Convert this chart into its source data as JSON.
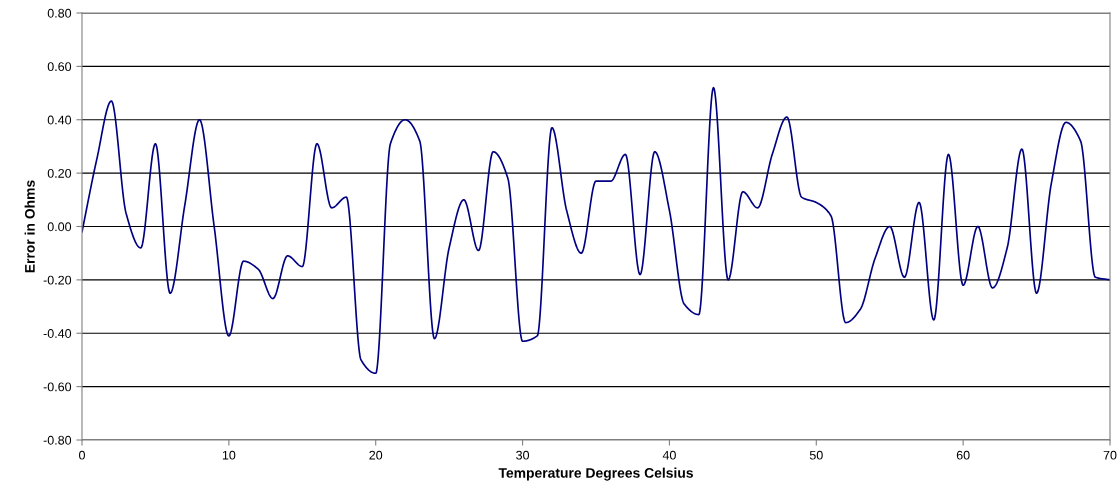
{
  "chart_data": {
    "type": "line",
    "xlabel": "Temperature Degrees Celsius",
    "ylabel": "Error in Ohms",
    "x": [
      0,
      1,
      2,
      3,
      4,
      5,
      6,
      7,
      8,
      9,
      10,
      11,
      12,
      13,
      14,
      15,
      16,
      17,
      18,
      19,
      20,
      21,
      22,
      23,
      24,
      25,
      26,
      27,
      28,
      29,
      30,
      31,
      32,
      33,
      34,
      35,
      36,
      37,
      38,
      39,
      40,
      41,
      42,
      43,
      44,
      45,
      46,
      47,
      48,
      49,
      50,
      51,
      52,
      53,
      54,
      55,
      56,
      57,
      58,
      59,
      60,
      61,
      62,
      63,
      64,
      65,
      66,
      67,
      68,
      69,
      70
    ],
    "series": [
      {
        "color": "#000080",
        "values": [
          -0.02,
          0.25,
          0.47,
          0.05,
          -0.08,
          0.31,
          -0.25,
          0.08,
          0.4,
          0.0,
          -0.41,
          -0.13,
          -0.16,
          -0.27,
          -0.11,
          -0.15,
          0.31,
          0.07,
          0.11,
          -0.5,
          -0.55,
          0.31,
          0.4,
          0.32,
          -0.42,
          -0.08,
          0.1,
          -0.09,
          0.28,
          0.18,
          -0.43,
          -0.41,
          0.37,
          0.06,
          -0.1,
          0.17,
          0.17,
          0.27,
          -0.18,
          0.28,
          0.06,
          -0.29,
          -0.33,
          0.52,
          -0.2,
          0.13,
          0.07,
          0.27,
          0.41,
          0.11,
          0.09,
          0.04,
          -0.36,
          -0.31,
          -0.12,
          0.0,
          -0.19,
          0.09,
          -0.35,
          0.27,
          -0.22,
          0.0,
          -0.23,
          -0.08,
          0.29,
          -0.25,
          0.16,
          0.39,
          0.32,
          -0.19,
          -0.2
        ]
      }
    ],
    "xlim": [
      0,
      70
    ],
    "xticks": [
      0,
      10,
      20,
      30,
      40,
      50,
      60,
      70
    ],
    "ylim": [
      -0.8,
      0.8
    ],
    "yticks": [
      {
        "value": -0.8,
        "label": "-0.80"
      },
      {
        "value": -0.6,
        "label": "-0.60"
      },
      {
        "value": -0.4,
        "label": "-0.40"
      },
      {
        "value": -0.2,
        "label": "-0.20"
      },
      {
        "value": 0,
        "label": "0.00"
      },
      {
        "value": 0.2,
        "label": "0.20"
      },
      {
        "value": 0.4,
        "label": "0.40"
      },
      {
        "value": 0.6,
        "label": "0.60"
      },
      {
        "value": 0.8,
        "label": "0.80"
      }
    ],
    "grid": "y",
    "legend": false,
    "marker": "none",
    "line_style": "solid"
  }
}
